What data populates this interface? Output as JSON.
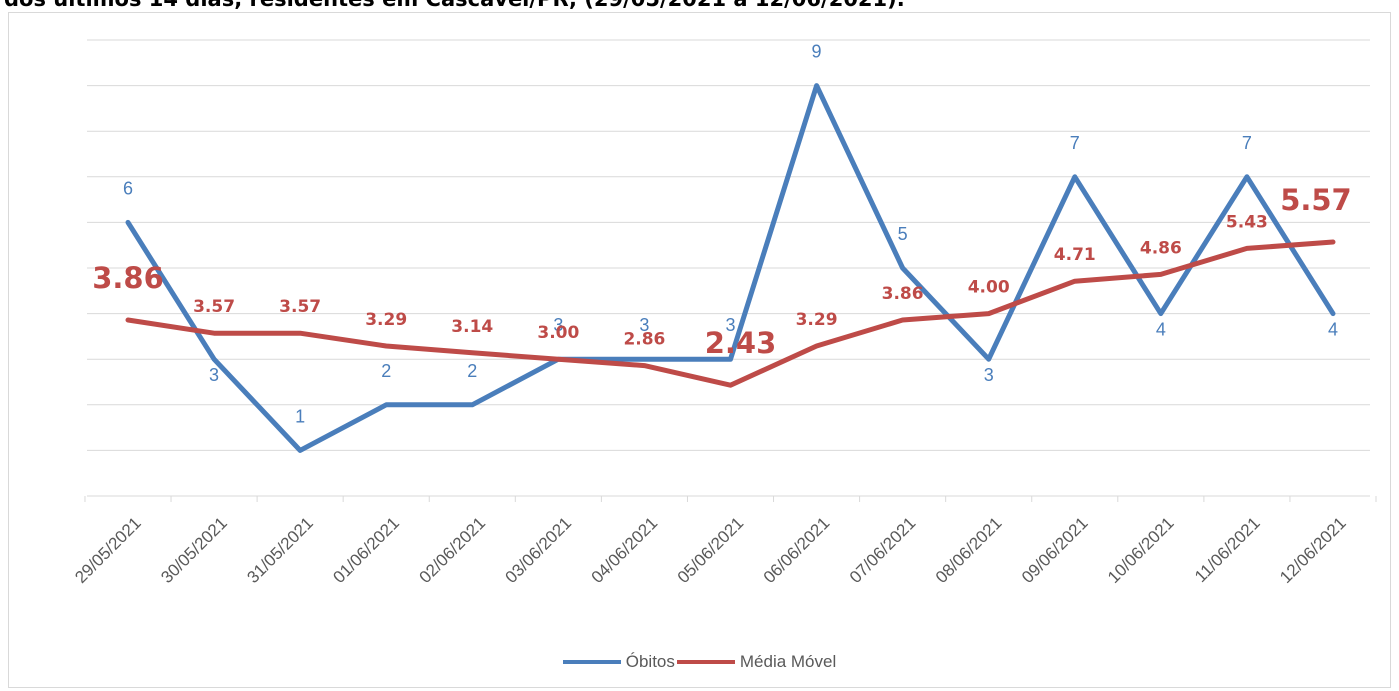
{
  "page": {
    "title": "dos últimos 14 dias, residentes em Cascavel/PR, (29/05/2021 a 12/06/2021)."
  },
  "colors": {
    "obitos": "#4a7ebb",
    "media_movel": "#be4b48",
    "grid": "#d9d9d9",
    "axis_text": "#595959"
  },
  "chart_data": {
    "type": "line",
    "title": "",
    "xlabel": "",
    "ylabel": "",
    "ylim": [
      0,
      10
    ],
    "grid": true,
    "legend_position": "bottom",
    "categories": [
      "29/05/2021",
      "30/05/2021",
      "31/05/2021",
      "01/06/2021",
      "02/06/2021",
      "03/06/2021",
      "04/06/2021",
      "05/06/2021",
      "06/06/2021",
      "07/06/2021",
      "08/06/2021",
      "09/06/2021",
      "10/06/2021",
      "11/06/2021",
      "12/06/2021"
    ],
    "series": [
      {
        "name": "Óbitos",
        "values": [
          6,
          3,
          1,
          2,
          2,
          3,
          3,
          3,
          9,
          5,
          3,
          7,
          4,
          7,
          4
        ],
        "labels": [
          "6",
          "3",
          "1",
          "2",
          "2",
          "3",
          "3",
          "3",
          "9",
          "5",
          "3",
          "7",
          "4",
          "7",
          "4"
        ]
      },
      {
        "name": "Média Móvel",
        "values": [
          3.86,
          3.57,
          3.57,
          3.29,
          3.14,
          3.0,
          2.86,
          2.43,
          3.29,
          3.86,
          4.0,
          4.71,
          4.86,
          5.43,
          5.57
        ],
        "labels": [
          "3.86",
          "3.57",
          "3.57",
          "3.29",
          "3.14",
          "3.00",
          "2.86",
          "2.43",
          "3.29",
          "3.86",
          "4.00",
          "4.71",
          "4.86",
          "5.43",
          "5.57"
        ],
        "highlighted_labels": [
          "3.86",
          "2.43",
          "5.57"
        ]
      }
    ]
  }
}
